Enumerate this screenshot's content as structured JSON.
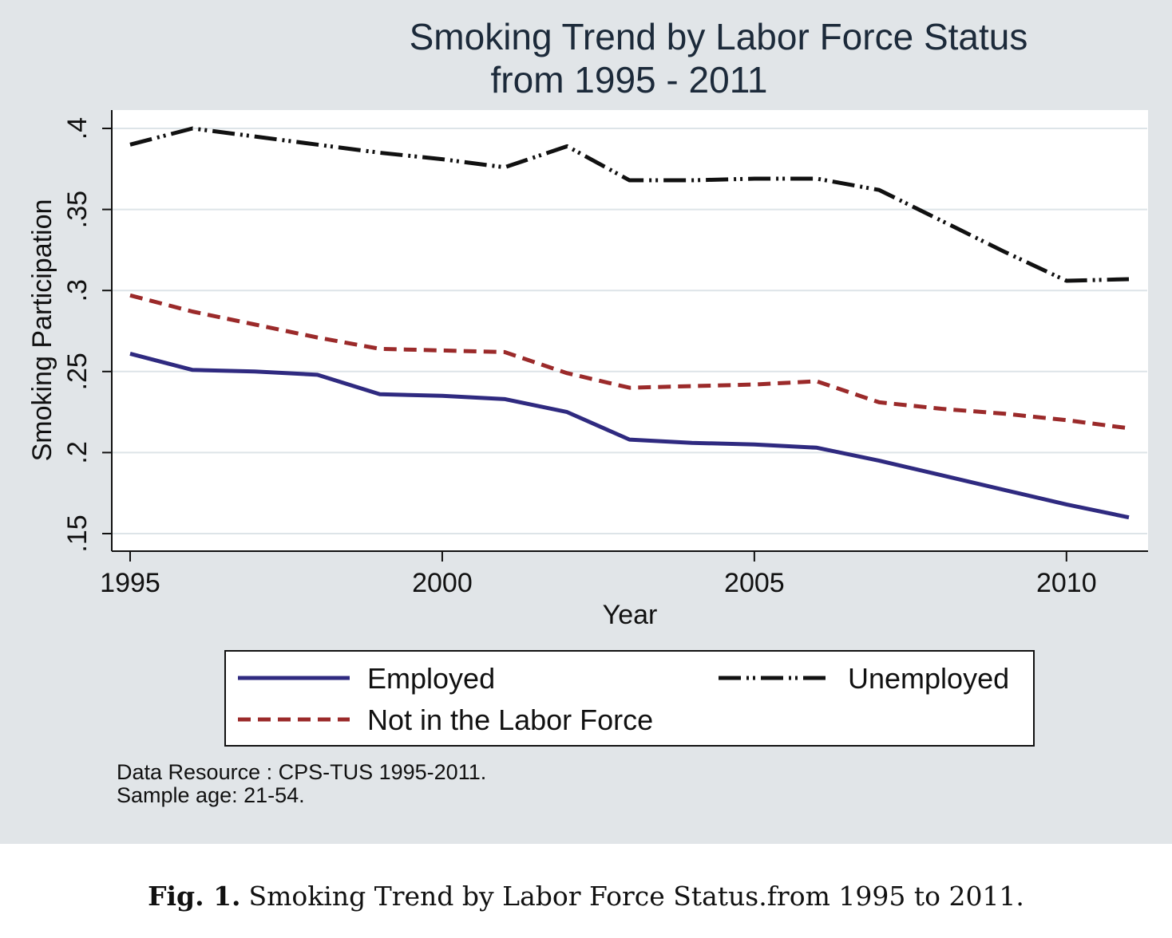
{
  "chart_data": {
    "type": "line",
    "title": [
      "Smoking Trend by Labor Force Status",
      "from 1995 - 2011"
    ],
    "xlabel": "Year",
    "ylabel": "Smoking Participation",
    "xlim": [
      1995,
      2011
    ],
    "ylim": [
      0.15,
      0.4
    ],
    "xticks": [
      1995,
      2000,
      2005,
      2010
    ],
    "yticks": [
      0.15,
      0.2,
      0.25,
      0.3,
      0.35,
      0.4
    ],
    "ytick_labels": [
      ".15",
      ".2",
      ".25",
      ".3",
      ".35",
      ".4"
    ],
    "grid": true,
    "legend_position": "bottom",
    "x": [
      1995,
      1996,
      1997,
      1998,
      1999,
      2000,
      2001,
      2002,
      2003,
      2004,
      2005,
      2006,
      2007,
      2008,
      2009,
      2010,
      2011
    ],
    "series": [
      {
        "name": "Employed",
        "color": "#2f2a80",
        "style": "solid",
        "values": [
          0.261,
          0.251,
          0.25,
          0.248,
          0.236,
          0.235,
          0.233,
          0.225,
          0.208,
          0.206,
          0.205,
          0.203,
          0.195,
          0.186,
          0.177,
          0.168,
          0.16
        ]
      },
      {
        "name": "Unemployed",
        "color": "#111111",
        "style": "dash-dot",
        "values": [
          0.39,
          0.4,
          0.395,
          0.39,
          0.385,
          0.381,
          0.376,
          0.389,
          0.368,
          0.368,
          0.369,
          0.369,
          0.362,
          0.343,
          0.324,
          0.306,
          0.307
        ]
      },
      {
        "name": "Not in the Labor Force",
        "color": "#9b2a2a",
        "style": "dashed",
        "values": [
          0.297,
          0.287,
          0.279,
          0.271,
          0.264,
          0.263,
          0.262,
          0.249,
          0.24,
          0.241,
          0.242,
          0.244,
          0.231,
          0.227,
          0.224,
          0.22,
          0.215
        ]
      }
    ],
    "notes": [
      "Data Resource : CPS-TUS 1995-2011.",
      "Sample age: 21-54."
    ]
  },
  "caption": {
    "label": "Fig. 1.",
    "text": "Smoking Trend by Labor Force Status.from 1995 to 2011."
  }
}
